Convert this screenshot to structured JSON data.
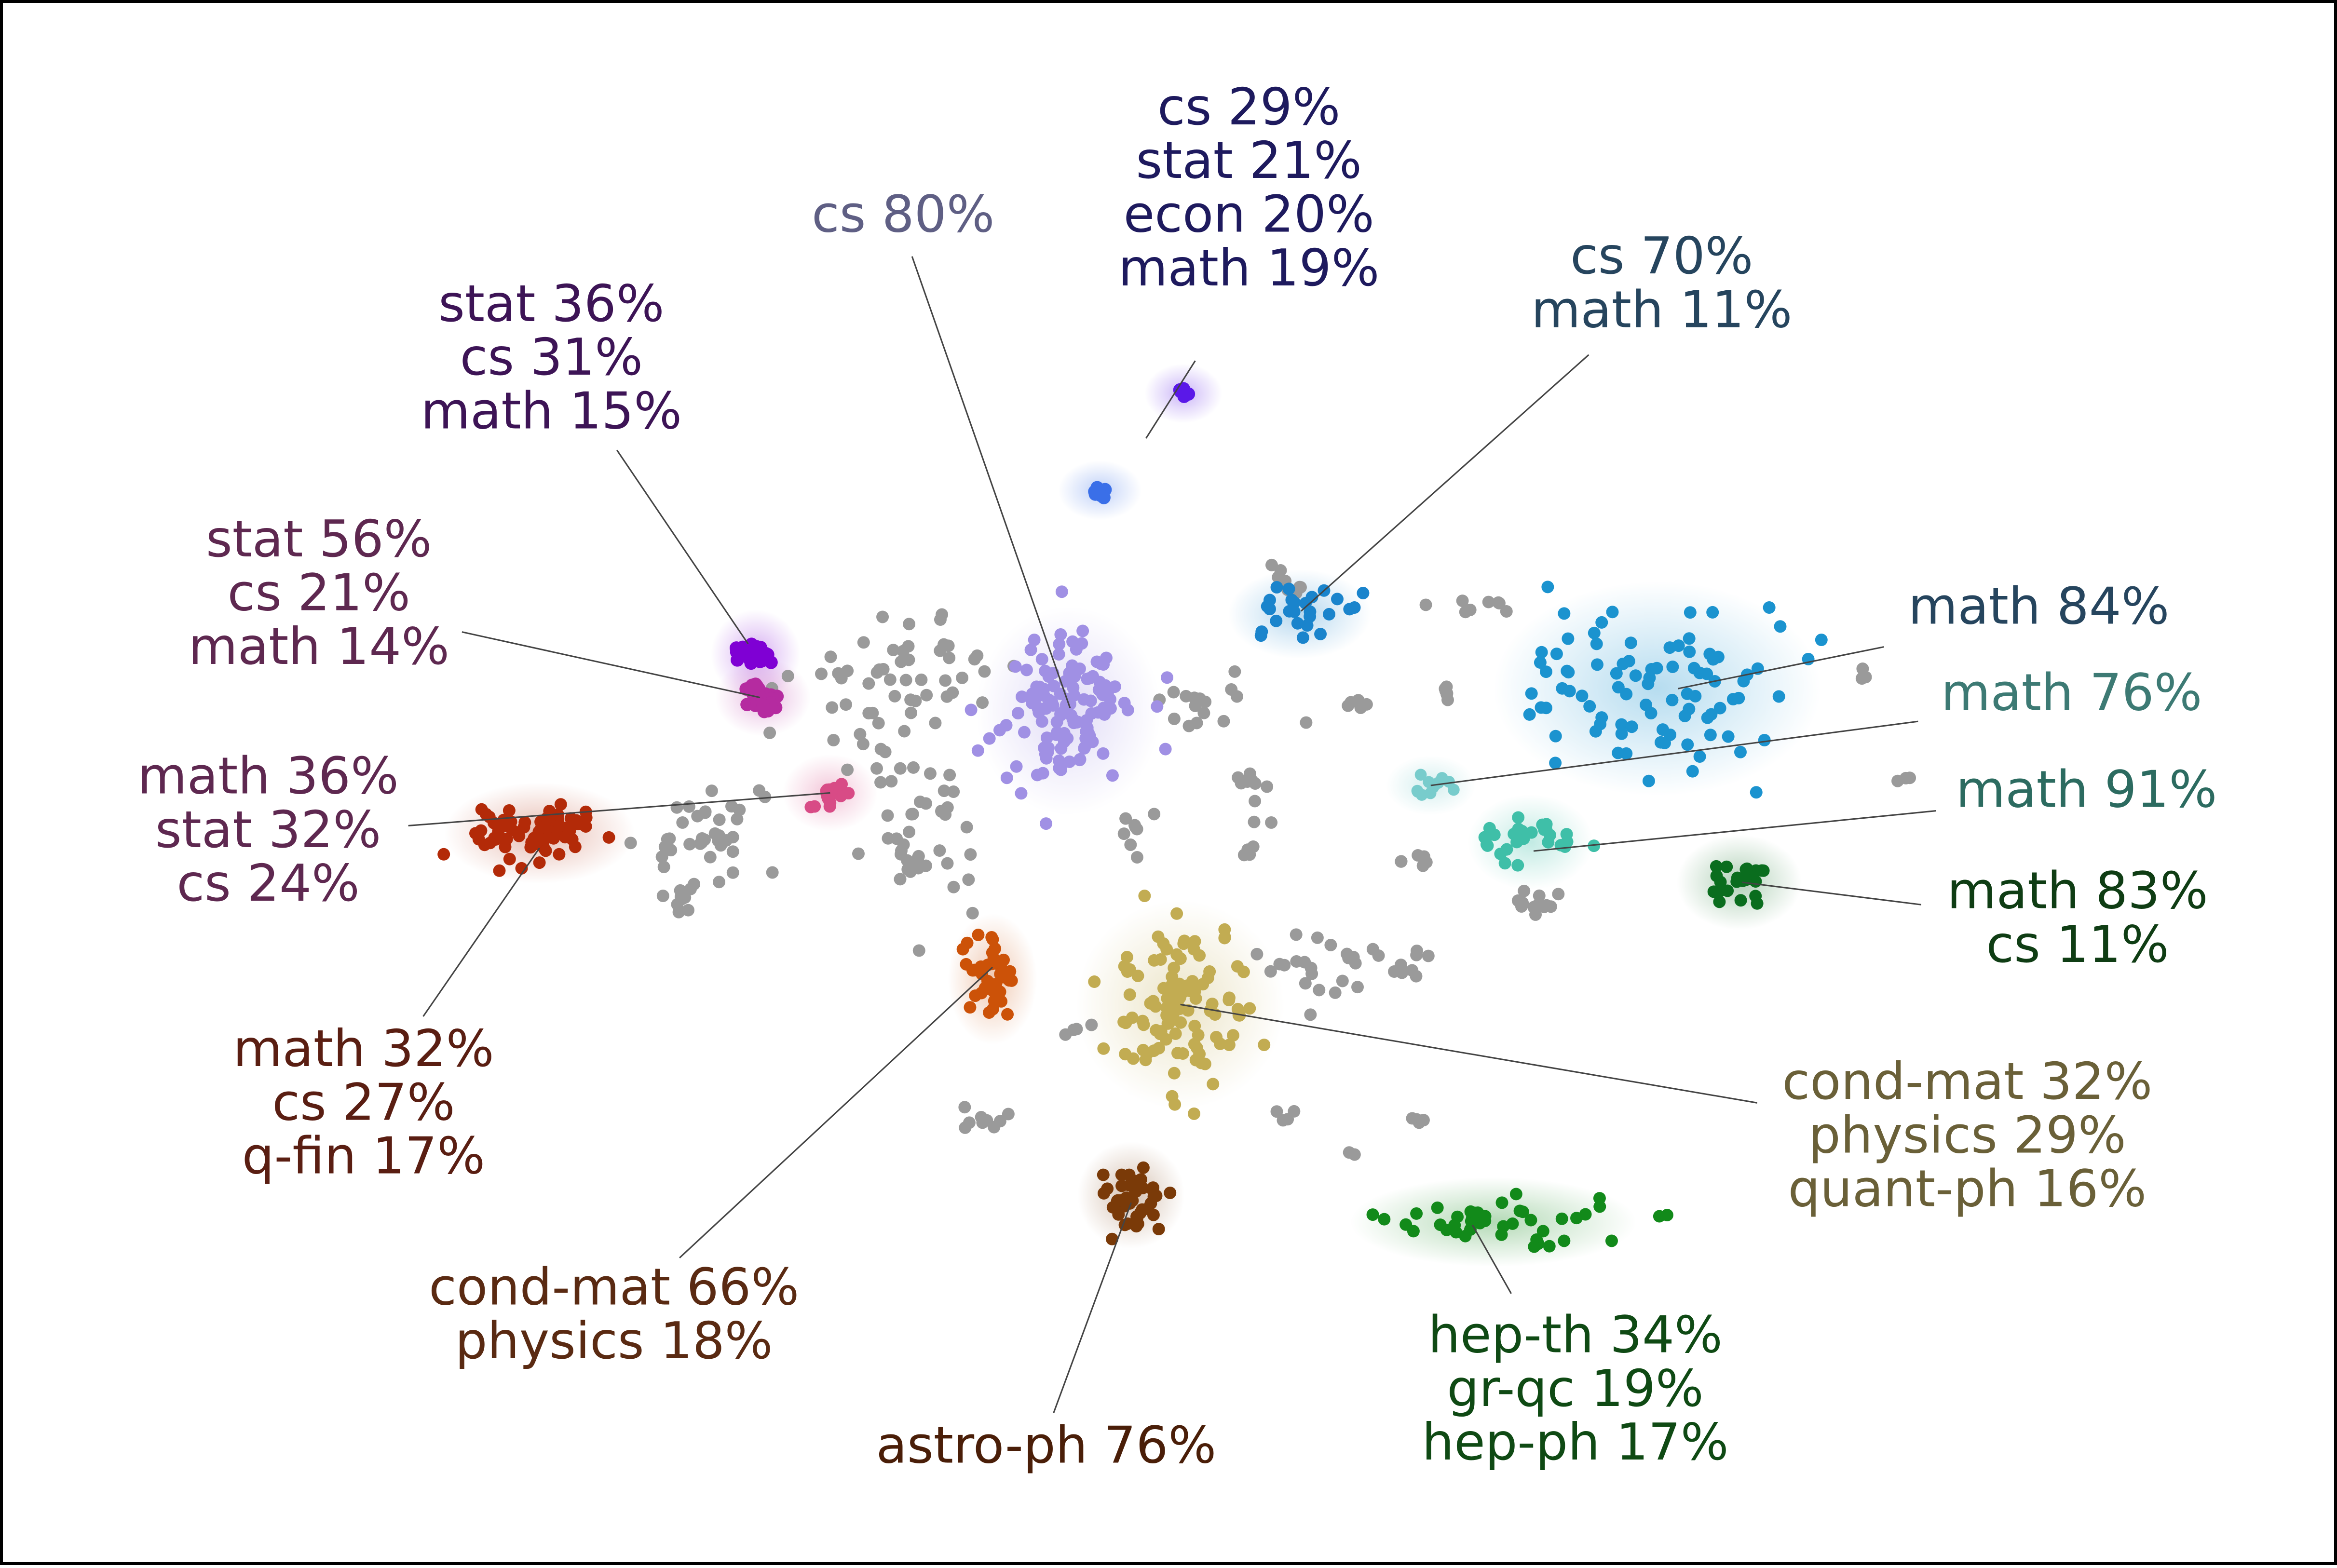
{
  "chart_data": {
    "type": "scatter",
    "title": "",
    "xlabel": "",
    "ylabel": "",
    "grid": false,
    "legend": "none",
    "background_point_color": "#9a9a9a",
    "clusters": [
      {
        "id": "c1",
        "color": "#7f00d4",
        "label_color": "#3d1456",
        "label_lines": [
          "stat 36%",
          "cs 31%",
          "math 15%"
        ],
        "center": [
          505,
          437
        ],
        "label_anchor": [
          368,
          240
        ],
        "leader": [
          [
            412,
            300
          ],
          [
            500,
            430
          ]
        ]
      },
      {
        "id": "c2",
        "color": "#b52ba0",
        "label_color": "#5e2850",
        "label_lines": [
          "stat 56%",
          "cs 21%",
          "math 14%"
        ],
        "center": [
          510,
          466
        ],
        "label_anchor": [
          212,
          398
        ],
        "leader": [
          [
            308,
            422
          ],
          [
            508,
            466
          ]
        ]
      },
      {
        "id": "c3",
        "color": "#b32a08",
        "label_color": "#5e2850",
        "label_lines": [
          "math 36%",
          "stat 32%",
          "cs 24%"
        ],
        "center": [
          360,
          557
        ],
        "label_anchor": [
          178,
          557
        ],
        "leader": [
          [
            272,
            552
          ],
          [
            555,
            530
          ]
        ]
      },
      {
        "id": "c4",
        "color": "#d84b86",
        "label_color": "#5a1e12",
        "label_lines": [
          "math 32%",
          "cs 27%",
          "q-fin 17%"
        ],
        "center": [
          555,
          530
        ],
        "label_anchor": [
          242,
          740
        ],
        "leader": [
          [
            282,
            680
          ],
          [
            360,
            567
          ]
        ]
      },
      {
        "id": "c5",
        "color": "#a090e4",
        "label_color": "#5f5f84",
        "label_lines": [
          "cs 80%"
        ],
        "center": [
          715,
          475
        ],
        "label_anchor": [
          604,
          144
        ],
        "leader": [
          [
            610,
            170
          ],
          [
            716,
            473
          ]
        ]
      },
      {
        "id": "c6",
        "color": "#5a18e8",
        "label_color": "#1e1a5e",
        "label_lines": [
          "cs 29%",
          "stat 21%",
          "econ 20%",
          "math 19%"
        ],
        "center": [
          792,
          262
        ],
        "label_anchor": [
          836,
          126
        ],
        "leader": [
          [
            800,
            240
          ],
          [
            767,
            292
          ]
        ]
      },
      {
        "id": "c7",
        "color": "#3a6fe8",
        "label_color": "#1e1a5e",
        "label_lines": [],
        "center": [
          736,
          327
        ],
        "label_anchor": [
          736,
          327
        ],
        "leader": []
      },
      {
        "id": "c8",
        "color": "#1a84cc",
        "label_color": "#26455e",
        "label_lines": [
          "cs 70%",
          "math 11%"
        ],
        "center": [
          870,
          410
        ],
        "label_anchor": [
          1113,
          190
        ],
        "leader": [
          [
            1064,
            236
          ],
          [
            871,
            408
          ]
        ]
      },
      {
        "id": "c9",
        "color": "#1b93cf",
        "label_color": "#26455e",
        "label_lines": [
          "math 84%"
        ],
        "center": [
          1110,
          460
        ],
        "label_anchor": [
          1366,
          407
        ],
        "leader": [
          [
            1262,
            432
          ],
          [
            1124,
            460
          ]
        ]
      },
      {
        "id": "c10",
        "color": "#78cccc",
        "label_color": "#3d7a74",
        "label_lines": [
          "math 76%"
        ],
        "center": [
          958,
          525
        ],
        "label_anchor": [
          1388,
          465
        ],
        "leader": [
          [
            1285,
            482
          ],
          [
            958,
            525
          ]
        ]
      },
      {
        "id": "c11",
        "color": "#3fbfa8",
        "label_color": "#2c6b60",
        "label_lines": [
          "math 91%"
        ],
        "center": [
          1025,
          563
        ],
        "label_anchor": [
          1398,
          530
        ],
        "leader": [
          [
            1297,
            542
          ],
          [
            1027,
            569
          ]
        ]
      },
      {
        "id": "c12",
        "color": "#0a6d1e",
        "label_color": "#0f3d14",
        "label_lines": [
          "math 83%",
          "cs 11%"
        ],
        "center": [
          1165,
          590
        ],
        "label_anchor": [
          1392,
          616
        ],
        "leader": [
          [
            1287,
            605
          ],
          [
            1167,
            590
          ]
        ]
      },
      {
        "id": "c13",
        "color": "#c2ac52",
        "label_color": "#6a6038",
        "label_lines": [
          "cond-mat 32%",
          "physics 29%",
          "quant-ph 16%"
        ],
        "center": [
          790,
          672
        ],
        "label_anchor": [
          1318,
          762
        ],
        "leader": [
          [
            1177,
            738
          ],
          [
            790,
            672
          ]
        ]
      },
      {
        "id": "c14",
        "color": "#cc5208",
        "label_color": "#5a2a12",
        "label_lines": [
          "cond-mat 66%",
          "physics 18%"
        ],
        "center": [
          664,
          655
        ],
        "label_anchor": [
          410,
          882
        ],
        "leader": [
          [
            454,
            842
          ],
          [
            664,
            647
          ]
        ]
      },
      {
        "id": "c15",
        "color": "#7a3a08",
        "label_color": "#4a1e08",
        "label_lines": [
          "astro-ph 76%"
        ],
        "center": [
          757,
          800
        ],
        "label_anchor": [
          700,
          970
        ],
        "leader": [
          [
            705,
            946
          ],
          [
            757,
            805
          ]
        ]
      },
      {
        "id": "c16",
        "color": "#128a1a",
        "label_color": "#0f4a14",
        "label_lines": [
          "hep-th 34%",
          "gr-qc 19%",
          "hep-ph 17%"
        ],
        "center": [
          1000,
          818
        ],
        "label_anchor": [
          1055,
          932
        ],
        "leader": [
          [
            1012,
            866
          ],
          [
            986,
            820
          ]
        ]
      }
    ]
  }
}
